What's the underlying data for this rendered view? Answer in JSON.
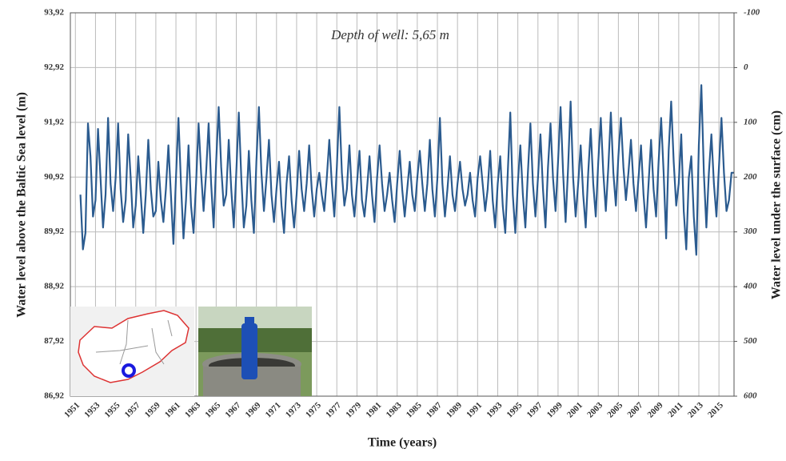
{
  "chart_data": {
    "type": "line",
    "annotation": "Depth of well: 5,65 m",
    "x_label": "Time (years)",
    "y_label": "Water level above the Baltic Sea level (m)",
    "y2_label": "Water level under the surface (cm)",
    "grid": true,
    "xlim": [
      1950.5,
      2016.5
    ],
    "xticks": [
      1951,
      1953,
      1955,
      1957,
      1959,
      1961,
      1963,
      1965,
      1967,
      1969,
      1971,
      1973,
      1975,
      1977,
      1979,
      1981,
      1983,
      1985,
      1987,
      1989,
      1991,
      1993,
      1995,
      1997,
      1999,
      2001,
      2003,
      2005,
      2007,
      2009,
      2011,
      2013,
      2015
    ],
    "ylim": [
      86.92,
      93.92
    ],
    "yticks": [
      {
        "value": 86.92,
        "label": "86,92"
      },
      {
        "value": 87.92,
        "label": "87,92"
      },
      {
        "value": 88.92,
        "label": "88,92"
      },
      {
        "value": 89.92,
        "label": "89,92"
      },
      {
        "value": 90.92,
        "label": "90,92"
      },
      {
        "value": 91.92,
        "label": "91,92"
      },
      {
        "value": 92.92,
        "label": "92,92"
      },
      {
        "value": 93.92,
        "label": "93,92"
      }
    ],
    "y2lim": [
      600,
      -100
    ],
    "y2ticks": [
      600,
      500,
      400,
      300,
      200,
      100,
      0,
      -100
    ],
    "series": [
      {
        "color": "#2b5b8f",
        "x": [
          1951.5,
          1951.75,
          1952,
          1952.25,
          1952.5,
          1952.75,
          1953,
          1953.25,
          1953.5,
          1953.75,
          1954,
          1954.25,
          1954.5,
          1954.75,
          1955,
          1955.25,
          1955.5,
          1955.75,
          1956,
          1956.25,
          1956.5,
          1956.75,
          1957,
          1957.25,
          1957.5,
          1957.75,
          1958,
          1958.25,
          1958.5,
          1958.75,
          1959,
          1959.25,
          1959.5,
          1959.75,
          1960,
          1960.25,
          1960.5,
          1960.75,
          1961,
          1961.25,
          1961.5,
          1961.75,
          1962,
          1962.25,
          1962.5,
          1962.75,
          1963,
          1963.25,
          1963.5,
          1963.75,
          1964,
          1964.25,
          1964.5,
          1964.75,
          1965,
          1965.25,
          1965.5,
          1965.75,
          1966,
          1966.25,
          1966.5,
          1966.75,
          1967,
          1967.25,
          1967.5,
          1967.75,
          1968,
          1968.25,
          1968.5,
          1968.75,
          1969,
          1969.25,
          1969.5,
          1969.75,
          1970,
          1970.25,
          1970.5,
          1970.75,
          1971,
          1971.25,
          1971.5,
          1971.75,
          1972,
          1972.25,
          1972.5,
          1972.75,
          1973,
          1973.25,
          1973.5,
          1973.75,
          1974,
          1974.25,
          1974.5,
          1974.75,
          1975,
          1975.25,
          1975.5,
          1975.75,
          1976,
          1976.25,
          1976.5,
          1976.75,
          1977,
          1977.25,
          1977.5,
          1977.75,
          1978,
          1978.25,
          1978.5,
          1978.75,
          1979,
          1979.25,
          1979.5,
          1979.75,
          1980,
          1980.25,
          1980.5,
          1980.75,
          1981,
          1981.25,
          1981.5,
          1981.75,
          1982,
          1982.25,
          1982.5,
          1982.75,
          1983,
          1983.25,
          1983.5,
          1983.75,
          1984,
          1984.25,
          1984.5,
          1984.75,
          1985,
          1985.25,
          1985.5,
          1985.75,
          1986,
          1986.25,
          1986.5,
          1986.75,
          1987,
          1987.25,
          1987.5,
          1987.75,
          1988,
          1988.25,
          1988.5,
          1988.75,
          1989,
          1989.25,
          1989.5,
          1989.75,
          1990,
          1990.25,
          1990.5,
          1990.75,
          1991,
          1991.25,
          1991.5,
          1991.75,
          1992,
          1992.25,
          1992.5,
          1992.75,
          1993,
          1993.25,
          1993.5,
          1993.75,
          1994,
          1994.25,
          1994.5,
          1994.75,
          1995,
          1995.25,
          1995.5,
          1995.75,
          1996,
          1996.25,
          1996.5,
          1996.75,
          1997,
          1997.25,
          1997.5,
          1997.75,
          1998,
          1998.25,
          1998.5,
          1998.75,
          1999,
          1999.25,
          1999.5,
          1999.75,
          2000,
          2000.25,
          2000.5,
          2000.75,
          2001,
          2001.25,
          2001.5,
          2001.75,
          2002,
          2002.25,
          2002.5,
          2002.75,
          2003,
          2003.25,
          2003.5,
          2003.75,
          2004,
          2004.25,
          2004.5,
          2004.75,
          2005,
          2005.25,
          2005.5,
          2005.75,
          2006,
          2006.25,
          2006.5,
          2006.75,
          2007,
          2007.25,
          2007.5,
          2007.75,
          2008,
          2008.25,
          2008.5,
          2008.75,
          2009,
          2009.25,
          2009.5,
          2009.75,
          2010,
          2010.25,
          2010.5,
          2010.75,
          2011,
          2011.25,
          2011.5,
          2011.75,
          2012,
          2012.25,
          2012.5,
          2012.75,
          2013,
          2013.25,
          2013.5,
          2013.75,
          2014,
          2014.25,
          2014.5,
          2014.75,
          2015,
          2015.25,
          2015.5,
          2015.75,
          2016,
          2016.25,
          2016.5
        ],
        "values": [
          90.6,
          89.6,
          89.9,
          91.9,
          91.3,
          90.2,
          90.5,
          91.8,
          90.9,
          90.0,
          90.6,
          92.0,
          90.8,
          90.3,
          90.9,
          91.9,
          90.7,
          90.1,
          90.5,
          91.7,
          90.9,
          90.0,
          90.4,
          91.3,
          90.6,
          89.9,
          90.6,
          91.6,
          90.7,
          90.2,
          90.3,
          91.2,
          90.5,
          90.1,
          90.7,
          91.5,
          90.6,
          89.7,
          90.9,
          92.0,
          90.8,
          89.8,
          90.5,
          91.5,
          90.4,
          89.9,
          90.8,
          91.9,
          91.0,
          90.3,
          91.0,
          91.9,
          90.8,
          90.0,
          91.2,
          92.2,
          91.1,
          90.4,
          90.6,
          91.6,
          90.7,
          90.0,
          91.0,
          92.1,
          90.9,
          90.0,
          90.4,
          91.4,
          90.5,
          89.9,
          91.2,
          92.2,
          91.0,
          90.3,
          90.9,
          91.6,
          90.6,
          90.1,
          90.7,
          91.2,
          90.4,
          89.9,
          90.8,
          91.3,
          90.5,
          90.0,
          90.6,
          91.4,
          90.7,
          90.3,
          90.8,
          91.5,
          90.7,
          90.2,
          90.7,
          91.0,
          90.6,
          90.3,
          90.9,
          91.6,
          90.8,
          90.2,
          91.1,
          92.2,
          91.0,
          90.4,
          90.7,
          91.5,
          90.6,
          90.2,
          90.8,
          91.4,
          90.5,
          90.2,
          90.7,
          91.3,
          90.6,
          90.1,
          90.9,
          91.5,
          90.8,
          90.3,
          90.6,
          91.0,
          90.5,
          90.1,
          90.8,
          91.4,
          90.7,
          90.2,
          90.7,
          91.2,
          90.6,
          90.3,
          90.9,
          91.4,
          90.8,
          90.3,
          90.8,
          91.6,
          90.7,
          90.2,
          90.9,
          92.0,
          90.8,
          90.2,
          90.7,
          91.3,
          90.6,
          90.3,
          90.8,
          91.2,
          90.7,
          90.4,
          90.6,
          91.0,
          90.5,
          90.2,
          90.9,
          91.3,
          90.8,
          90.3,
          90.7,
          91.4,
          90.5,
          90.0,
          90.8,
          91.3,
          90.4,
          89.9,
          91.0,
          92.1,
          90.6,
          89.9,
          90.8,
          91.5,
          90.6,
          90.0,
          91.0,
          91.9,
          90.8,
          90.2,
          90.9,
          91.7,
          90.7,
          90.0,
          91.1,
          91.9,
          90.9,
          90.3,
          91.2,
          92.2,
          91.0,
          90.1,
          91.1,
          92.3,
          90.9,
          90.2,
          90.8,
          91.5,
          90.6,
          90.0,
          91.0,
          91.8,
          90.8,
          90.2,
          91.2,
          92.0,
          91.0,
          90.3,
          91.1,
          92.1,
          91.0,
          90.4,
          91.3,
          92.0,
          91.1,
          90.5,
          91.0,
          91.6,
          90.8,
          90.3,
          90.9,
          91.5,
          90.6,
          90.0,
          90.8,
          91.6,
          90.7,
          90.2,
          91.2,
          92.0,
          91.0,
          89.8,
          91.4,
          92.3,
          91.2,
          90.4,
          90.8,
          91.7,
          90.3,
          89.6,
          90.9,
          91.3,
          90.2,
          89.5,
          91.5,
          92.6,
          91.0,
          90.0,
          91.0,
          91.7,
          90.8,
          90.2,
          91.1,
          92.0,
          91.0,
          90.3,
          90.5,
          91.0,
          91.0
        ]
      }
    ]
  }
}
